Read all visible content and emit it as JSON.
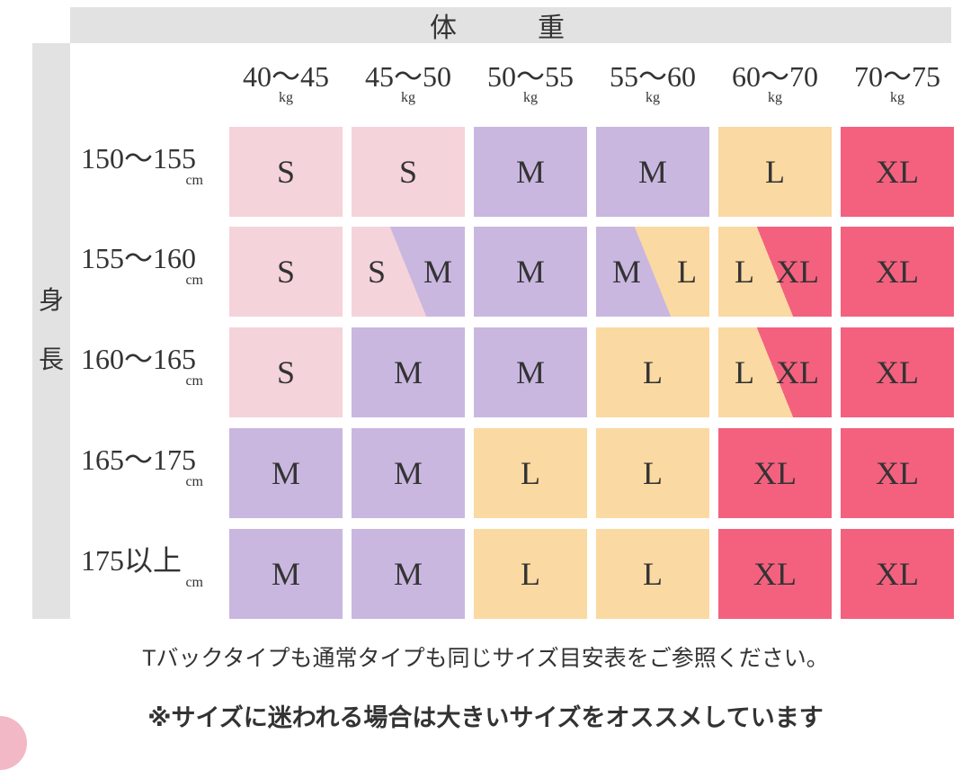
{
  "header": {
    "weight": "体　重",
    "height_chars": [
      "身",
      "長"
    ]
  },
  "weights": [
    {
      "range": "40〜45",
      "unit": "kg"
    },
    {
      "range": "45〜50",
      "unit": "kg"
    },
    {
      "range": "50〜55",
      "unit": "kg"
    },
    {
      "range": "55〜60",
      "unit": "kg"
    },
    {
      "range": "60〜70",
      "unit": "kg"
    },
    {
      "range": "70〜75",
      "unit": "kg"
    }
  ],
  "heights": [
    {
      "range": "150〜155",
      "unit": "cm"
    },
    {
      "range": "155〜160",
      "unit": "cm"
    },
    {
      "range": "160〜165",
      "unit": "cm"
    },
    {
      "range": "165〜175",
      "unit": "cm"
    },
    {
      "range": "175以上",
      "unit": "cm"
    }
  ],
  "colors": {
    "S": "#f5d3da",
    "M": "#c9b7e0",
    "L": "#fbd9a2",
    "XL": "#f3617f"
  },
  "grid": [
    [
      [
        "S"
      ],
      [
        "S"
      ],
      [
        "M"
      ],
      [
        "M"
      ],
      [
        "L"
      ],
      [
        "XL"
      ]
    ],
    [
      [
        "S"
      ],
      [
        "S",
        "M"
      ],
      [
        "M"
      ],
      [
        "M",
        "L"
      ],
      [
        "L",
        "XL"
      ],
      [
        "XL"
      ]
    ],
    [
      [
        "S"
      ],
      [
        "M"
      ],
      [
        "M"
      ],
      [
        "L"
      ],
      [
        "L",
        "XL"
      ],
      [
        "XL"
      ]
    ],
    [
      [
        "M"
      ],
      [
        "M"
      ],
      [
        "L"
      ],
      [
        "L"
      ],
      [
        "XL"
      ],
      [
        "XL"
      ]
    ],
    [
      [
        "M"
      ],
      [
        "M"
      ],
      [
        "L"
      ],
      [
        "L"
      ],
      [
        "XL"
      ],
      [
        "XL"
      ]
    ]
  ],
  "notes": [
    "Tバックタイプも通常タイプも同じサイズ目安表をご参照ください。",
    "※サイズに迷われる場合は大きいサイズをオススメしています"
  ]
}
